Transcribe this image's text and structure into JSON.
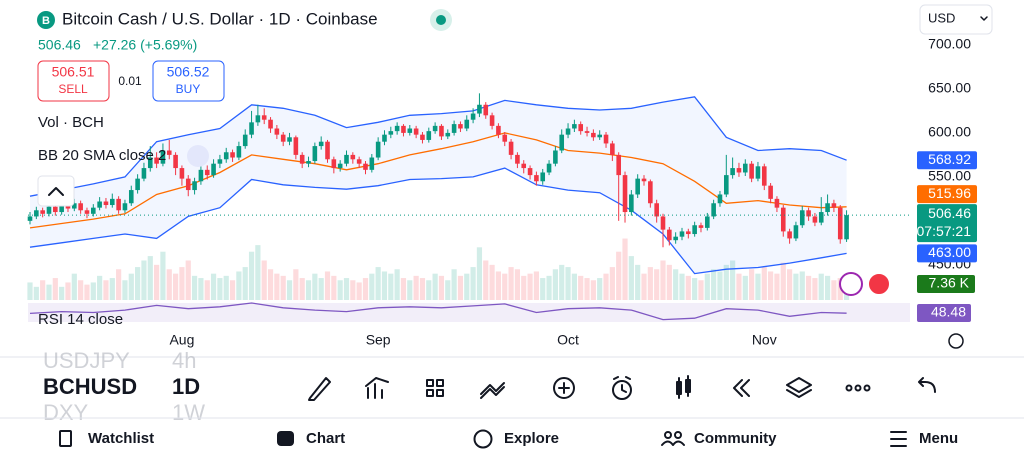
{
  "header": {
    "title": "Bitcoin Cash / U.S. Dollar · 1D · Coinbase",
    "price": "506.46",
    "change": "+27.26 (+5.69%)",
    "sell_price": "506.51",
    "sell": "SELL",
    "spread": "0.01",
    "buy_price": "506.52",
    "buy": "BUY",
    "currency": "USD"
  },
  "chart_data": {
    "type": "candlestick",
    "indicators": [
      "Vol · BCH",
      "BB 20 SMA close 2",
      "RSI 14 close"
    ],
    "colors": {
      "up": "#089981",
      "down": "#f23645"
    },
    "ylim": [
      410,
      717
    ],
    "yticks": [
      {
        "value": 700,
        "label": "700.00"
      },
      {
        "value": 650,
        "label": "650.00"
      },
      {
        "value": 600,
        "label": "600.00"
      },
      {
        "value": 550,
        "label": "550.00"
      },
      {
        "value": 450,
        "label": "450.00"
      }
    ],
    "xticks": [
      {
        "value": 24,
        "label": "Aug"
      },
      {
        "value": 55,
        "label": "Sep"
      },
      {
        "value": 85,
        "label": "Oct"
      },
      {
        "value": 116,
        "label": "Nov"
      }
    ],
    "candles": [
      [
        500,
        510,
        496,
        505
      ],
      [
        505,
        516,
        502,
        512
      ],
      [
        512,
        515,
        504,
        508
      ],
      [
        508,
        520,
        505,
        516
      ],
      [
        516,
        519,
        506,
        510
      ],
      [
        510,
        522,
        507,
        518
      ],
      [
        518,
        523,
        510,
        514
      ],
      [
        514,
        525,
        511,
        520
      ],
      [
        520,
        523,
        508,
        512
      ],
      [
        512,
        515,
        503,
        508
      ],
      [
        508,
        519,
        505,
        515
      ],
      [
        515,
        527,
        512,
        522
      ],
      [
        522,
        526,
        514,
        518
      ],
      [
        518,
        531,
        515,
        525
      ],
      [
        525,
        528,
        508,
        512
      ],
      [
        512,
        524,
        509,
        520
      ],
      [
        520,
        540,
        517,
        535
      ],
      [
        535,
        553,
        531,
        548
      ],
      [
        548,
        566,
        545,
        560
      ],
      [
        560,
        585,
        556,
        572
      ],
      [
        572,
        578,
        560,
        565
      ],
      [
        565,
        588,
        562,
        580
      ],
      [
        580,
        592,
        570,
        575
      ],
      [
        575,
        578,
        552,
        560
      ],
      [
        560,
        563,
        540,
        548
      ],
      [
        548,
        552,
        528,
        535
      ],
      [
        535,
        549,
        530,
        545
      ],
      [
        545,
        562,
        541,
        558
      ],
      [
        558,
        563,
        547,
        552
      ],
      [
        552,
        570,
        549,
        565
      ],
      [
        565,
        575,
        560,
        570
      ],
      [
        570,
        583,
        566,
        578
      ],
      [
        578,
        581,
        567,
        572
      ],
      [
        572,
        590,
        569,
        585
      ],
      [
        585,
        604,
        582,
        598
      ],
      [
        598,
        625,
        594,
        612
      ],
      [
        612,
        632,
        608,
        620
      ],
      [
        620,
        628,
        610,
        615
      ],
      [
        615,
        618,
        600,
        605
      ],
      [
        605,
        609,
        593,
        598
      ],
      [
        598,
        601,
        585,
        590
      ],
      [
        590,
        600,
        586,
        595
      ],
      [
        595,
        597,
        570,
        575
      ],
      [
        575,
        578,
        560,
        565
      ],
      [
        565,
        573,
        561,
        568
      ],
      [
        568,
        589,
        565,
        585
      ],
      [
        585,
        596,
        581,
        590
      ],
      [
        590,
        592,
        566,
        570
      ],
      [
        570,
        573,
        554,
        560
      ],
      [
        560,
        569,
        556,
        565
      ],
      [
        565,
        580,
        562,
        575
      ],
      [
        575,
        578,
        565,
        570
      ],
      [
        570,
        573,
        560,
        565
      ],
      [
        565,
        568,
        553,
        558
      ],
      [
        558,
        576,
        555,
        572
      ],
      [
        572,
        595,
        569,
        590
      ],
      [
        590,
        603,
        586,
        598
      ],
      [
        598,
        607,
        594,
        602
      ],
      [
        602,
        612,
        598,
        608
      ],
      [
        608,
        610,
        596,
        600
      ],
      [
        600,
        609,
        597,
        605
      ],
      [
        605,
        608,
        594,
        598
      ],
      [
        598,
        601,
        588,
        592
      ],
      [
        592,
        606,
        589,
        602
      ],
      [
        602,
        612,
        599,
        608
      ],
      [
        608,
        610,
        592,
        596
      ],
      [
        596,
        604,
        593,
        600
      ],
      [
        600,
        614,
        597,
        610
      ],
      [
        610,
        613,
        601,
        605
      ],
      [
        605,
        620,
        602,
        615
      ],
      [
        615,
        628,
        611,
        622
      ],
      [
        622,
        645,
        618,
        632
      ],
      [
        632,
        635,
        616,
        620
      ],
      [
        620,
        623,
        604,
        608
      ],
      [
        608,
        611,
        594,
        598
      ],
      [
        598,
        601,
        585,
        590
      ],
      [
        590,
        593,
        570,
        575
      ],
      [
        575,
        578,
        560,
        565
      ],
      [
        565,
        569,
        554,
        560
      ],
      [
        560,
        563,
        547,
        552
      ],
      [
        552,
        556,
        540,
        545
      ],
      [
        545,
        559,
        541,
        555
      ],
      [
        555,
        569,
        552,
        565
      ],
      [
        565,
        585,
        562,
        580
      ],
      [
        580,
        604,
        577,
        598
      ],
      [
        598,
        611,
        594,
        605
      ],
      [
        605,
        615,
        601,
        610
      ],
      [
        610,
        613,
        598,
        602
      ],
      [
        602,
        607,
        596,
        600
      ],
      [
        600,
        604,
        591,
        595
      ],
      [
        595,
        603,
        592,
        598
      ],
      [
        598,
        601,
        583,
        588
      ],
      [
        588,
        591,
        568,
        575
      ],
      [
        575,
        578,
        500,
        552
      ],
      [
        552,
        556,
        498,
        510
      ],
      [
        510,
        535,
        506,
        530
      ],
      [
        530,
        553,
        526,
        548
      ],
      [
        548,
        552,
        540,
        545
      ],
      [
        545,
        547,
        515,
        520
      ],
      [
        520,
        524,
        498,
        505
      ],
      [
        505,
        508,
        470,
        490
      ],
      [
        490,
        493,
        472,
        478
      ],
      [
        478,
        487,
        474,
        482
      ],
      [
        482,
        492,
        478,
        488
      ],
      [
        488,
        491,
        480,
        485
      ],
      [
        485,
        499,
        482,
        495
      ],
      [
        495,
        498,
        487,
        492
      ],
      [
        492,
        509,
        489,
        505
      ],
      [
        505,
        524,
        502,
        520
      ],
      [
        520,
        534,
        516,
        530
      ],
      [
        530,
        575,
        527,
        552
      ],
      [
        552,
        572,
        548,
        560
      ],
      [
        560,
        566,
        550,
        555
      ],
      [
        555,
        570,
        551,
        565
      ],
      [
        565,
        568,
        544,
        548
      ],
      [
        548,
        567,
        545,
        562
      ],
      [
        562,
        565,
        535,
        540
      ],
      [
        540,
        543,
        520,
        525
      ],
      [
        525,
        528,
        510,
        515
      ],
      [
        515,
        518,
        482,
        488
      ],
      [
        488,
        491,
        474,
        480
      ],
      [
        480,
        499,
        477,
        495
      ],
      [
        495,
        517,
        492,
        512
      ],
      [
        512,
        515,
        500,
        505
      ],
      [
        505,
        509,
        494,
        498
      ],
      [
        498,
        527,
        495,
        510
      ],
      [
        510,
        530,
        506,
        520
      ],
      [
        520,
        524,
        510,
        515
      ],
      [
        515,
        518,
        474,
        479
      ],
      [
        479,
        512,
        476,
        506.46
      ]
    ],
    "volume": [
      8,
      6,
      9,
      7,
      10,
      6,
      8,
      12,
      9,
      7,
      8,
      11,
      9,
      10,
      14,
      9,
      12,
      15,
      18,
      20,
      16,
      22,
      14,
      12,
      15,
      18,
      11,
      10,
      9,
      12,
      10,
      11,
      9,
      13,
      15,
      22,
      25,
      18,
      14,
      12,
      11,
      9,
      14,
      10,
      9,
      12,
      10,
      13,
      11,
      9,
      10,
      9,
      8,
      10,
      12,
      15,
      13,
      12,
      14,
      10,
      9,
      11,
      10,
      9,
      12,
      11,
      9,
      14,
      11,
      12,
      15,
      24,
      18,
      16,
      13,
      12,
      15,
      14,
      11,
      12,
      13,
      10,
      11,
      14,
      16,
      15,
      12,
      11,
      10,
      9,
      10,
      12,
      15,
      22,
      28,
      20,
      16,
      12,
      15,
      14,
      18,
      16,
      14,
      12,
      11,
      10,
      9,
      12,
      14,
      13,
      16,
      18,
      12,
      11,
      14,
      12,
      15,
      13,
      12,
      17,
      14,
      12,
      13,
      11,
      10,
      12,
      11,
      9,
      10,
      7.36
    ],
    "vol_lim": [
      0,
      123
    ],
    "bands": {
      "x": [
        0,
        5,
        10,
        15,
        20,
        25,
        30,
        35,
        40,
        45,
        50,
        55,
        60,
        65,
        70,
        75,
        80,
        85,
        90,
        95,
        100,
        105,
        110,
        115,
        120,
        125,
        129
      ],
      "upper": [
        528,
        535,
        542,
        550,
        590,
        598,
        605,
        632,
        628,
        620,
        606,
        612,
        620,
        622,
        625,
        637,
        632,
        628,
        626,
        628,
        635,
        641,
        595,
        580,
        582,
        580,
        568.92
      ],
      "middle": [
        492,
        497,
        502,
        508,
        530,
        540,
        555,
        575,
        570,
        565,
        558,
        565,
        575,
        582,
        590,
        600,
        592,
        580,
        577,
        572,
        565,
        545,
        520,
        523,
        518,
        515,
        515.96
      ],
      "lower": [
        470,
        475,
        480,
        485,
        480,
        505,
        515,
        547,
        541,
        538,
        536,
        540,
        547,
        548,
        550,
        560,
        541,
        535,
        532,
        512,
        485,
        440,
        445,
        447,
        452,
        458,
        463
      ],
      "band_color": "#2962ff",
      "basis_color": "#ff6d00"
    },
    "rsi": {
      "x": [
        0,
        5,
        10,
        15,
        20,
        25,
        30,
        35,
        40,
        45,
        50,
        55,
        60,
        65,
        70,
        75,
        80,
        85,
        90,
        95,
        100,
        105,
        110,
        115,
        120,
        125,
        129
      ],
      "values": [
        48,
        52,
        50,
        55,
        65,
        58,
        62,
        70,
        60,
        55,
        52,
        60,
        62,
        60,
        64,
        68,
        50,
        58,
        60,
        55,
        35,
        38,
        58,
        55,
        42,
        50,
        48.48
      ],
      "ylim": [
        30,
        70
      ],
      "color": "#7e57c2",
      "label": "48.48"
    },
    "tags": [
      {
        "value": 568.92,
        "label": "568.92",
        "color": "#2962ff"
      },
      {
        "value": 515.96,
        "label": "515.96",
        "color": "#ff6d00"
      },
      {
        "value": 506.46,
        "label": "506.46",
        "sub": "07:57:21",
        "color": "#089981"
      },
      {
        "value": 463,
        "label": "463.00",
        "color": "#2962ff"
      }
    ],
    "volume_tag": {
      "label": "7.36 K",
      "color": "#1b7a1b"
    }
  },
  "symbols": [
    {
      "symbol": "USDJPY",
      "interval": "4h"
    },
    {
      "symbol": "BCHUSD",
      "interval": "1D"
    },
    {
      "symbol": "DXY",
      "interval": "1W"
    }
  ],
  "nav": [
    "Watchlist",
    "Chart",
    "Explore",
    "Community",
    "Menu"
  ]
}
